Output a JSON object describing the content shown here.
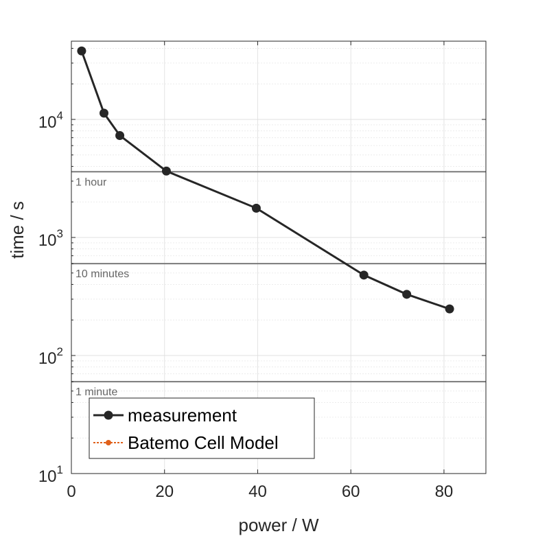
{
  "chart_data": {
    "type": "line",
    "xlabel": "power / W",
    "ylabel": "time / s",
    "xlim": [
      0,
      89
    ],
    "ylim": [
      10,
      46000
    ],
    "yscale": "log",
    "grid": true,
    "x_ticks": [
      0,
      20,
      40,
      60,
      80
    ],
    "y_ticks": [
      {
        "value": 10,
        "base": "10",
        "exp": "1"
      },
      {
        "value": 100,
        "base": "10",
        "exp": "2"
      },
      {
        "value": 1000,
        "base": "10",
        "exp": "3"
      },
      {
        "value": 10000,
        "base": "10",
        "exp": "4"
      }
    ],
    "reference_lines": [
      {
        "value": 3600,
        "label": "1 hour"
      },
      {
        "value": 600,
        "label": "10 minutes"
      },
      {
        "value": 60,
        "label": "1 minute"
      }
    ],
    "series": [
      {
        "name": "measurement",
        "color": "#262626",
        "x": [
          2.2,
          7.0,
          10.4,
          20.4,
          39.7,
          62.8,
          72.0,
          81.2
        ],
        "y": [
          38000,
          11300,
          7300,
          3650,
          1770,
          480,
          330,
          248
        ]
      },
      {
        "name": "Batemo Cell Model",
        "color": "#e0601a",
        "x": [],
        "y": []
      }
    ],
    "legend": {
      "placement": "bottom-left"
    }
  }
}
